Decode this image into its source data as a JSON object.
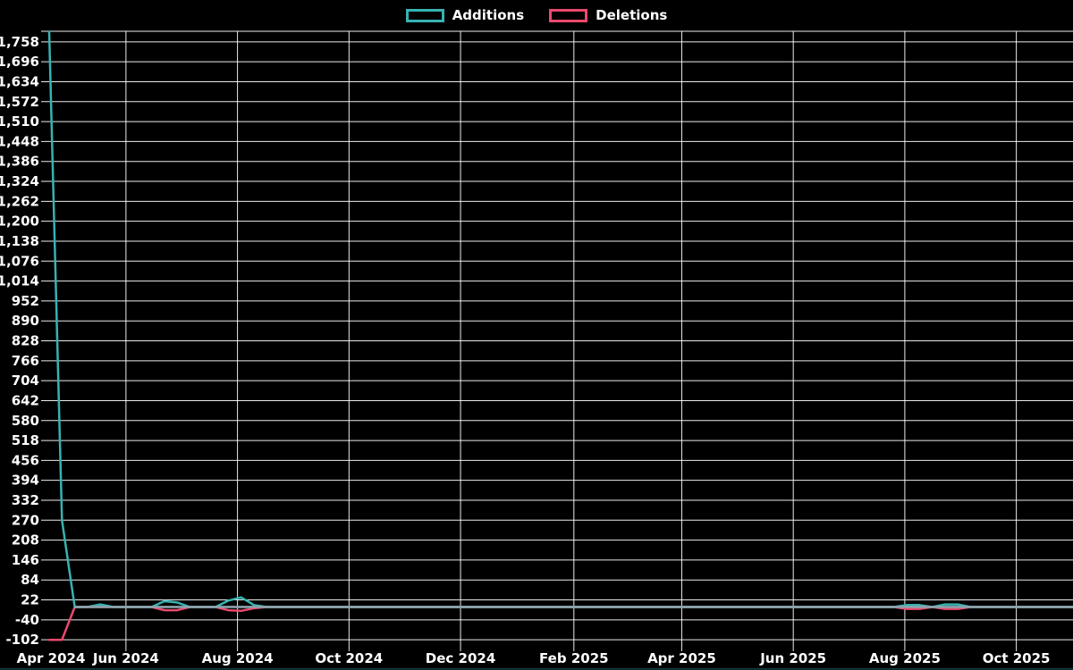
{
  "legend": {
    "items": [
      {
        "label": "Additions",
        "color": "#38b2b2"
      },
      {
        "label": "Deletions",
        "color": "#ea4a6e"
      }
    ]
  },
  "colors": {
    "background": "#000000",
    "gridline": "#ffffff",
    "text": "#ffffff",
    "additions": "#38b2b2",
    "deletions": "#ea4a6e",
    "overlap_zero_line": "#8da4ad",
    "bottom_accent": "#2d8f8f"
  },
  "chart_data": {
    "type": "line",
    "title": "",
    "interval": "weekly",
    "legend_position": "top-center",
    "grid": true,
    "x_axis": {
      "start": "2024-04-20",
      "end": "2025-11-01",
      "tick_labels": [
        {
          "label": "Apr 2024",
          "date": "2024-04-21",
          "gridline": false
        },
        {
          "label": "Jun 2024",
          "date": "2024-06-01",
          "gridline": true
        },
        {
          "label": "Aug 2024",
          "date": "2024-08-01",
          "gridline": true
        },
        {
          "label": "Oct 2024",
          "date": "2024-10-01",
          "gridline": true
        },
        {
          "label": "Dec 2024",
          "date": "2024-12-01",
          "gridline": true
        },
        {
          "label": "Feb 2025",
          "date": "2025-02-01",
          "gridline": true
        },
        {
          "label": "Apr 2025",
          "date": "2025-04-01",
          "gridline": true
        },
        {
          "label": "Jun 2025",
          "date": "2025-06-01",
          "gridline": true
        },
        {
          "label": "Aug 2025",
          "date": "2025-08-01",
          "gridline": true
        },
        {
          "label": "Oct 2025",
          "date": "2025-10-01",
          "gridline": true
        }
      ]
    },
    "y_axis": {
      "ylim": [
        -121,
        1791
      ],
      "tick_step": 62,
      "ticks": [
        {
          "value": 1758,
          "label": "1,758"
        },
        {
          "value": 1696,
          "label": "1,696"
        },
        {
          "value": 1634,
          "label": "1,634"
        },
        {
          "value": 1572,
          "label": "1,572"
        },
        {
          "value": 1510,
          "label": "1,510"
        },
        {
          "value": 1448,
          "label": "1,448"
        },
        {
          "value": 1386,
          "label": "1,386"
        },
        {
          "value": 1324,
          "label": "1,324"
        },
        {
          "value": 1262,
          "label": "1,262"
        },
        {
          "value": 1200,
          "label": "1,200"
        },
        {
          "value": 1138,
          "label": "1,138"
        },
        {
          "value": 1076,
          "label": "1,076"
        },
        {
          "value": 1014,
          "label": "1,014"
        },
        {
          "value": 952,
          "label": "952"
        },
        {
          "value": 890,
          "label": "890"
        },
        {
          "value": 828,
          "label": "828"
        },
        {
          "value": 766,
          "label": "766"
        },
        {
          "value": 704,
          "label": "704"
        },
        {
          "value": 642,
          "label": "642"
        },
        {
          "value": 580,
          "label": "580"
        },
        {
          "value": 518,
          "label": "518"
        },
        {
          "value": 456,
          "label": "456"
        },
        {
          "value": 394,
          "label": "394"
        },
        {
          "value": 332,
          "label": "332"
        },
        {
          "value": 270,
          "label": "270"
        },
        {
          "value": 208,
          "label": "208"
        },
        {
          "value": 146,
          "label": "146"
        },
        {
          "value": 84,
          "label": "84"
        },
        {
          "value": 22,
          "label": "22"
        },
        {
          "value": -40,
          "label": "-40"
        },
        {
          "value": -102,
          "label": "-102"
        }
      ]
    },
    "series": [
      {
        "name": "Additions",
        "color": "#38b2b2",
        "default": 0,
        "values": {
          "2024-04-20": 1790,
          "2024-04-27": 270,
          "2024-05-18": 8,
          "2024-06-22": 18,
          "2024-06-29": 14,
          "2024-07-27": 20,
          "2024-08-03": 30,
          "2024-08-10": 6,
          "2025-08-02": 6,
          "2025-08-09": 6,
          "2025-08-23": 8,
          "2025-08-30": 8
        }
      },
      {
        "name": "Deletions",
        "color": "#ea4a6e",
        "default": 0,
        "values": {
          "2024-04-20": -102,
          "2024-04-27": -102,
          "2024-06-22": -10,
          "2024-06-29": -10,
          "2024-07-27": -10,
          "2024-08-03": -12,
          "2024-08-10": -4,
          "2025-08-02": -6,
          "2025-08-09": -6,
          "2025-08-23": -6,
          "2025-08-30": -6
        }
      }
    ],
    "overlap_line": {
      "from": "2024-05-04",
      "value": 0,
      "color": "#8da4ad"
    }
  }
}
